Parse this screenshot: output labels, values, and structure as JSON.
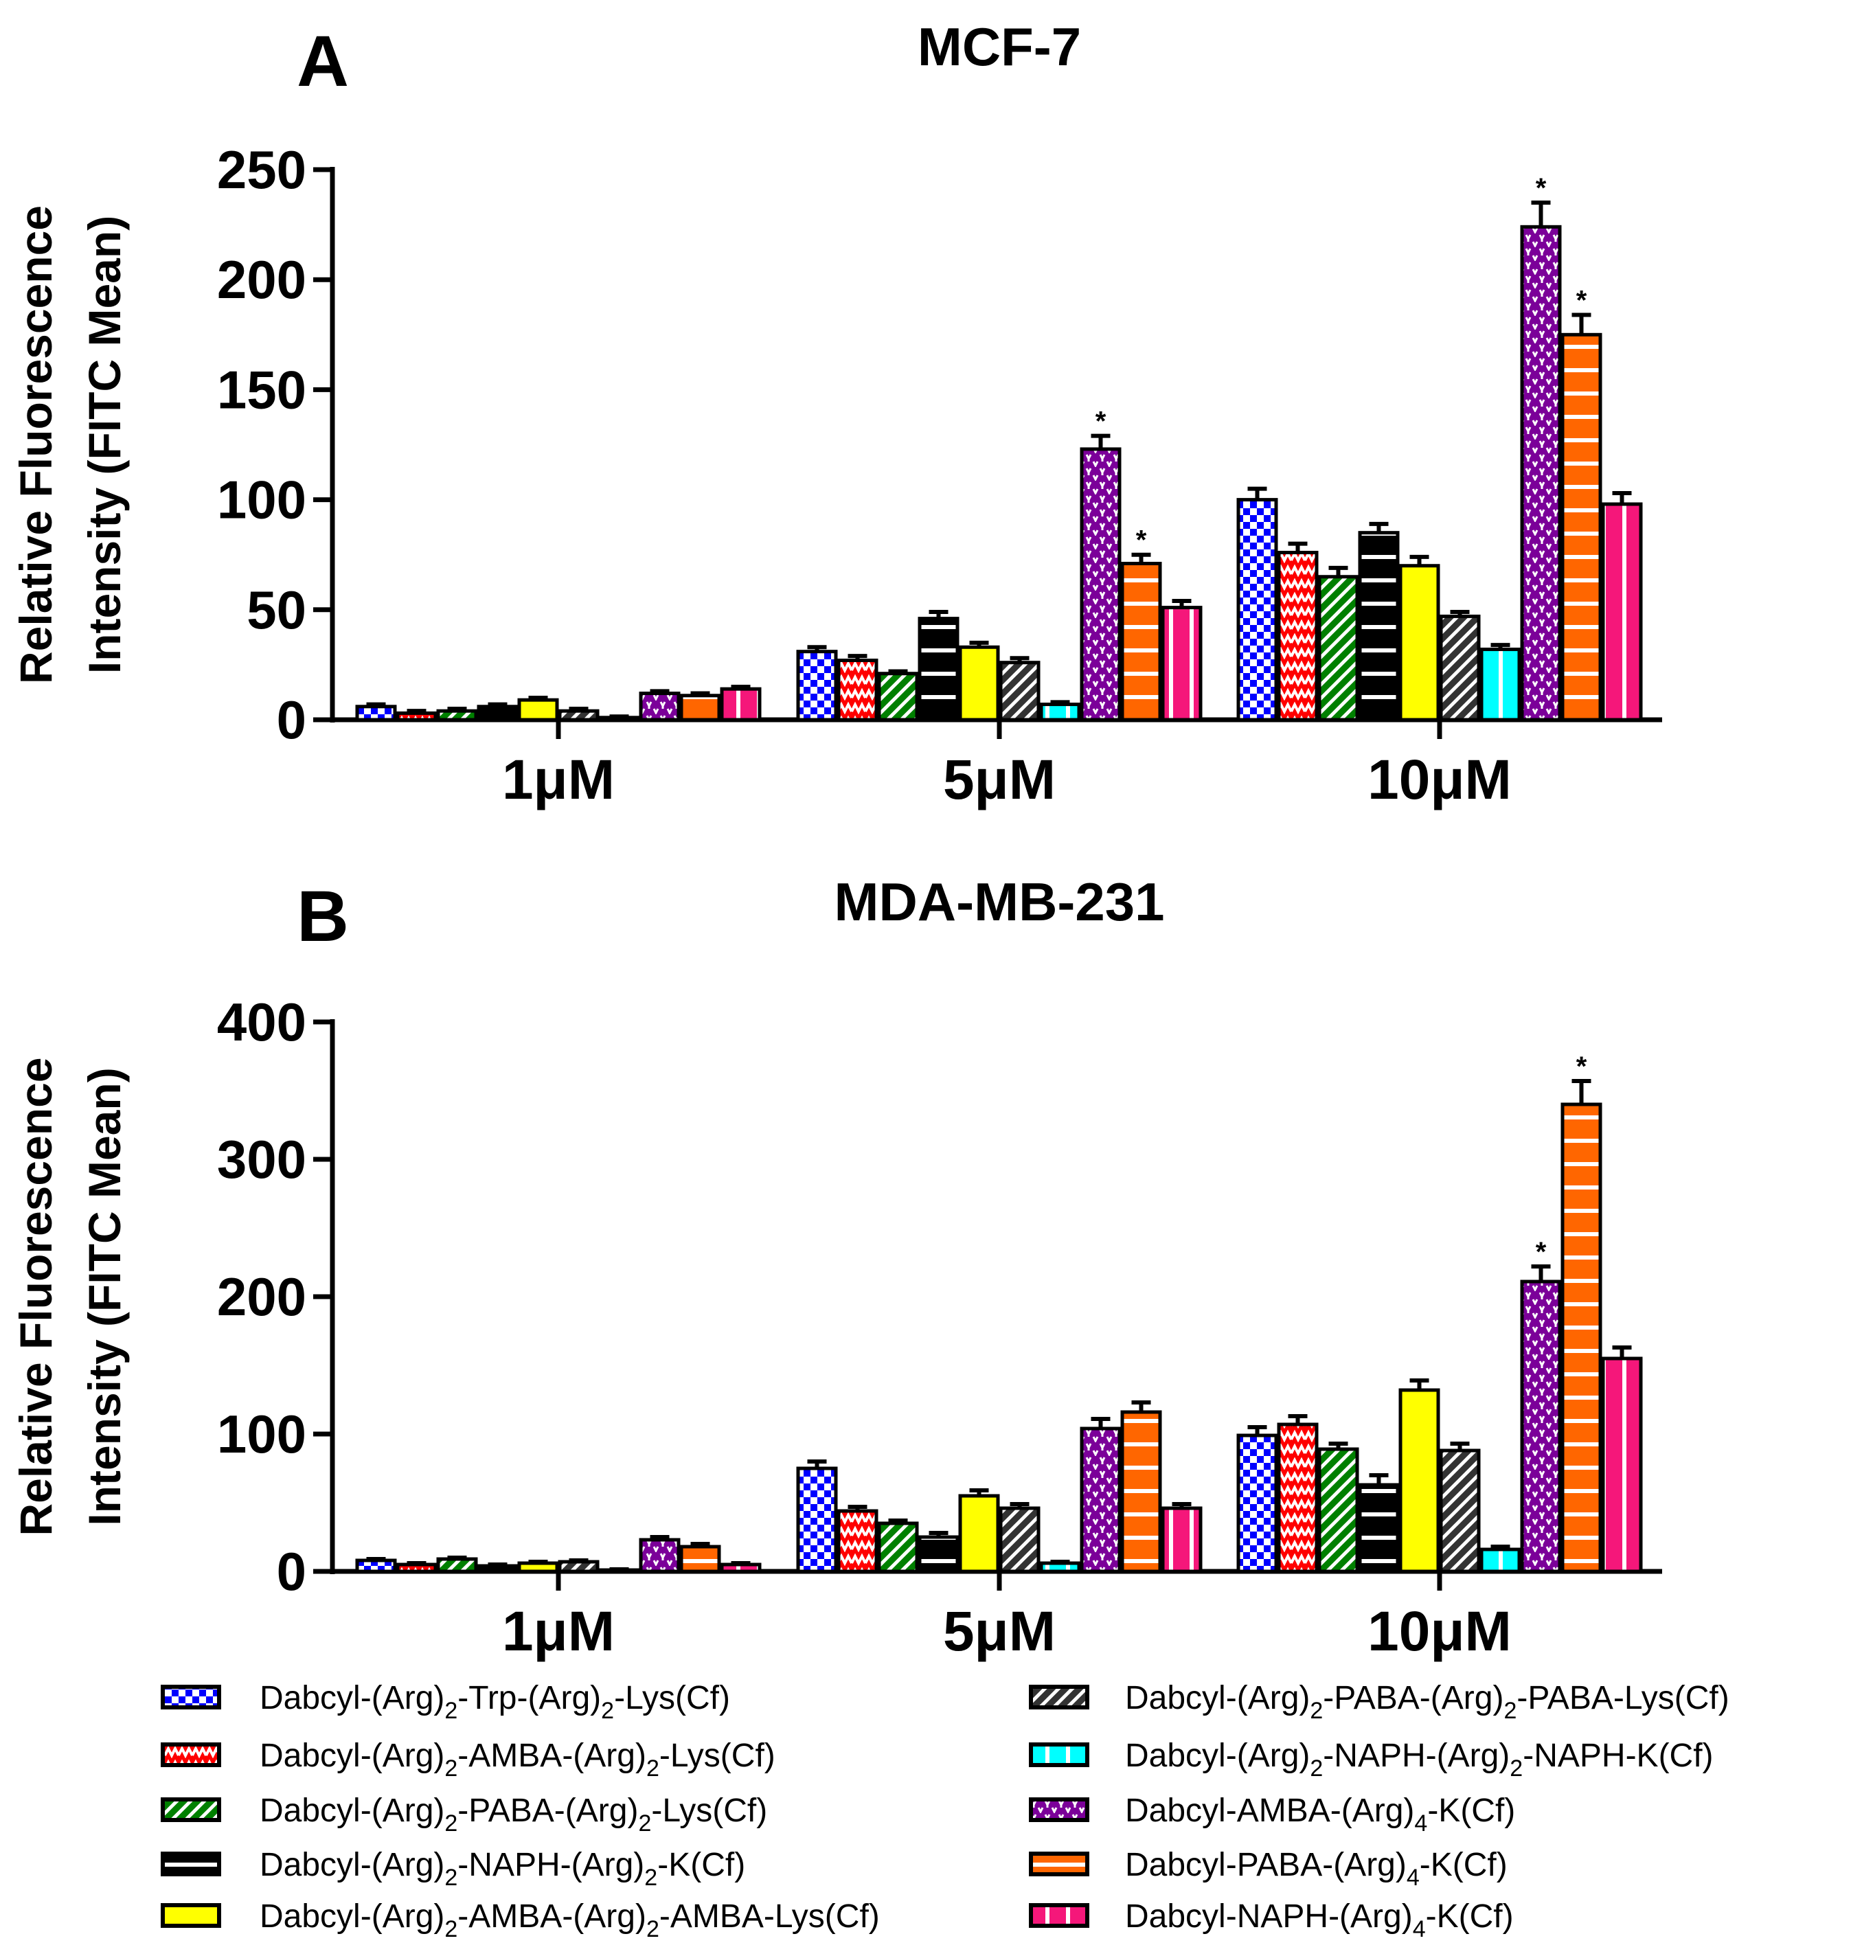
{
  "chart_data": [
    {
      "type": "bar",
      "panel_letter": "A",
      "title": "MCF-7",
      "ylabel": [
        "Relative Fluorescence",
        "Intensity (FITC Mean)"
      ],
      "xlabel": "",
      "categories": [
        "1μM",
        "5μM",
        "10μM"
      ],
      "ylim": [
        0,
        250
      ],
      "yticks": [
        "0",
        "50",
        "100",
        "150",
        "200",
        "250"
      ],
      "ytick_values": [
        0,
        50,
        100,
        150,
        200,
        250
      ],
      "series_values": [
        [
          6,
          31,
          100
        ],
        [
          3,
          27,
          76
        ],
        [
          4,
          21,
          65
        ],
        [
          6,
          46,
          85
        ],
        [
          9,
          33,
          70
        ],
        [
          4,
          26,
          47
        ],
        [
          1,
          7,
          32
        ],
        [
          12,
          123,
          224
        ],
        [
          11,
          71,
          175
        ],
        [
          14,
          51,
          98
        ]
      ],
      "errors": [
        [
          1,
          2,
          5
        ],
        [
          1,
          2,
          4
        ],
        [
          1,
          1,
          4
        ],
        [
          1,
          3,
          4
        ],
        [
          1,
          2,
          4
        ],
        [
          1,
          2,
          2
        ],
        [
          0.5,
          1,
          2
        ],
        [
          1,
          6,
          11
        ],
        [
          1,
          4,
          9
        ],
        [
          1,
          3,
          5
        ]
      ],
      "significance": [
        [
          1,
          7
        ],
        [
          1,
          8
        ],
        [
          2,
          7
        ],
        [
          2,
          8
        ]
      ],
      "star": "*"
    },
    {
      "type": "bar",
      "panel_letter": "B",
      "title": "MDA-MB-231",
      "ylabel": [
        "Relative Fluorescence",
        "Intensity (FITC Mean)"
      ],
      "xlabel": "",
      "categories": [
        "1μM",
        "5μM",
        "10μM"
      ],
      "ylim": [
        0,
        400
      ],
      "yticks": [
        "0",
        "100",
        "200",
        "300",
        "400"
      ],
      "ytick_values": [
        0,
        100,
        200,
        300,
        400
      ],
      "series_values": [
        [
          8,
          75,
          99
        ],
        [
          5,
          44,
          107
        ],
        [
          9,
          35,
          89
        ],
        [
          4,
          25,
          63
        ],
        [
          6,
          55,
          132
        ],
        [
          7,
          46,
          88
        ],
        [
          1,
          6,
          16
        ],
        [
          23,
          104,
          211
        ],
        [
          18,
          116,
          340
        ],
        [
          5,
          46,
          155
        ]
      ],
      "errors": [
        [
          1,
          5,
          6
        ],
        [
          1,
          3,
          6
        ],
        [
          1,
          2,
          4
        ],
        [
          1,
          3,
          7
        ],
        [
          1,
          4,
          7
        ],
        [
          1,
          3,
          5
        ],
        [
          0.5,
          1,
          2
        ],
        [
          2,
          7,
          11
        ],
        [
          2,
          7,
          17
        ],
        [
          1,
          3,
          8
        ]
      ],
      "significance": [
        [
          2,
          7
        ],
        [
          2,
          8
        ]
      ],
      "star": "*"
    }
  ],
  "legend": {
    "placement": "bottom",
    "items": [
      {
        "parts": [
          [
            "Dabcyl-(Arg)",
            0
          ],
          [
            "2",
            1
          ],
          [
            "-Trp-(Arg)",
            0
          ],
          [
            "2",
            1
          ],
          [
            "-Lys(Cf)",
            0
          ]
        ],
        "color": "#0000ff",
        "pattern": "checker"
      },
      {
        "parts": [
          [
            "Dabcyl-(Arg)",
            0
          ],
          [
            "2",
            1
          ],
          [
            "-AMBA-(Arg)",
            0
          ],
          [
            "2",
            1
          ],
          [
            "-Lys(Cf)",
            0
          ]
        ],
        "color": "#ff0000",
        "pattern": "zigzag"
      },
      {
        "parts": [
          [
            "Dabcyl-(Arg)",
            0
          ],
          [
            "2",
            1
          ],
          [
            "-PABA-(Arg)",
            0
          ],
          [
            "2",
            1
          ],
          [
            "-Lys(Cf)",
            0
          ]
        ],
        "color": "#008000",
        "pattern": "diagonal"
      },
      {
        "parts": [
          [
            "Dabcyl-(Arg)",
            0
          ],
          [
            "2",
            1
          ],
          [
            "-NAPH-(Arg)",
            0
          ],
          [
            "2",
            1
          ],
          [
            "-K(Cf)",
            0
          ]
        ],
        "color": "#000000",
        "pattern": "hlines"
      },
      {
        "parts": [
          [
            "Dabcyl-(Arg)",
            0
          ],
          [
            "2",
            1
          ],
          [
            "-AMBA-(Arg)",
            0
          ],
          [
            "2",
            1
          ],
          [
            "-AMBA-Lys(Cf)",
            0
          ]
        ],
        "color": "#ffff00",
        "pattern": "solid"
      },
      {
        "parts": [
          [
            "Dabcyl-(Arg)",
            0
          ],
          [
            "2",
            1
          ],
          [
            "-PABA-(Arg)",
            0
          ],
          [
            "2",
            1
          ],
          [
            "-PABA-Lys(Cf)",
            0
          ]
        ],
        "color": "#333333",
        "pattern": "diagonal"
      },
      {
        "parts": [
          [
            "Dabcyl-(Arg)",
            0
          ],
          [
            "2",
            1
          ],
          [
            "-NAPH-(Arg)",
            0
          ],
          [
            "2",
            1
          ],
          [
            "-NAPH-K(Cf)",
            0
          ]
        ],
        "color": "#00ffff",
        "pattern": "vlines"
      },
      {
        "parts": [
          [
            "Dabcyl-AMBA-(Arg)",
            0
          ],
          [
            "4",
            1
          ],
          [
            "-K(Cf)",
            0
          ]
        ],
        "color": "#7b0099",
        "pattern": "dots"
      },
      {
        "parts": [
          [
            "Dabcyl-PABA-(Arg)",
            0
          ],
          [
            "4",
            1
          ],
          [
            "-K(Cf)",
            0
          ]
        ],
        "color": "#ff6600",
        "pattern": "hlines"
      },
      {
        "parts": [
          [
            "Dabcyl-NAPH-(Arg)",
            0
          ],
          [
            "4",
            1
          ],
          [
            "-K(Cf)",
            0
          ]
        ],
        "color": "#f5177a",
        "pattern": "vlines"
      }
    ]
  }
}
